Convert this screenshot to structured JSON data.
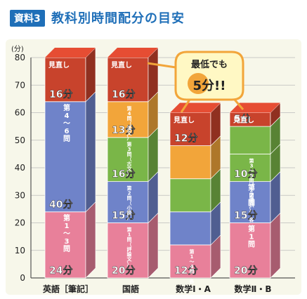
{
  "header": {
    "tag": "資料3",
    "title": "教科別時間配分の目安"
  },
  "chart_data": {
    "type": "bar",
    "stacked": true,
    "unit": "(分)",
    "ylim": [
      0,
      80
    ],
    "yticks": [
      0,
      10,
      20,
      30,
      40,
      50,
      60,
      70,
      80
    ],
    "grid": true,
    "categories": [
      "英語［筆記］",
      "国語",
      "数学Ⅰ・A",
      "数学Ⅱ・B"
    ],
    "columns": [
      {
        "category": "英語［筆記］",
        "segments": [
          {
            "value": 24,
            "label": "第1〜3問",
            "value_text": "24分",
            "color": "#e8809a"
          },
          {
            "value": 40,
            "label": "第4〜6問",
            "value_text": "40分",
            "color": "#6f83c9"
          },
          {
            "value": 16,
            "label": "見直し",
            "value_text": "16分",
            "color": "#c8432c"
          }
        ]
      },
      {
        "category": "国語",
        "segments": [
          {
            "value": 20,
            "label": "第1問（評論文）",
            "value_text": "20分",
            "color": "#e8809a"
          },
          {
            "value": 15,
            "label": "第2問（小説）",
            "value_text": "15分",
            "color": "#6f83c9"
          },
          {
            "value": 16,
            "label": "第3問（古文）",
            "value_text": "16分",
            "color": "#7ab648"
          },
          {
            "value": 13,
            "label": "第4問（漢文）",
            "value_text": "13分",
            "color": "#f2a53a"
          },
          {
            "value": 16,
            "label": "見直し",
            "value_text": "16分",
            "color": "#c8432c"
          }
        ]
      },
      {
        "category": "数学Ⅰ・A",
        "segments": [
          {
            "value": 12,
            "label": "第1〜4問 各",
            "value_text": "12分",
            "color": "#e8809a",
            "band": 0
          },
          {
            "value": 12,
            "label": "",
            "value_text": "",
            "color": "#6f83c9"
          },
          {
            "value": 12,
            "label": "",
            "value_text": "",
            "color": "#7ab648"
          },
          {
            "value": 12,
            "label": "",
            "value_text": "",
            "color": "#f2a53a"
          },
          {
            "value": 12,
            "label": "見直し",
            "value_text": "12分",
            "color": "#c8432c"
          }
        ]
      },
      {
        "category": "数学Ⅱ・B",
        "segments": [
          {
            "value": 20,
            "label": "第1問",
            "value_text": "20分",
            "color": "#e8809a"
          },
          {
            "value": 15,
            "label": "第2問",
            "value_text": "15分",
            "color": "#6f83c9"
          },
          {
            "value": 10,
            "label": "第3〜5問（2問選択） 各",
            "value_text": "10分",
            "color": "#7ab648"
          },
          {
            "value": 10,
            "label": "",
            "value_text": "",
            "color": "#7ab648"
          },
          {
            "value": 5,
            "label": "見直し",
            "value_text": "5分",
            "color": "#c8432c"
          }
        ]
      }
    ],
    "annotation": {
      "line1": "最低でも",
      "line2": "5分!!"
    }
  }
}
